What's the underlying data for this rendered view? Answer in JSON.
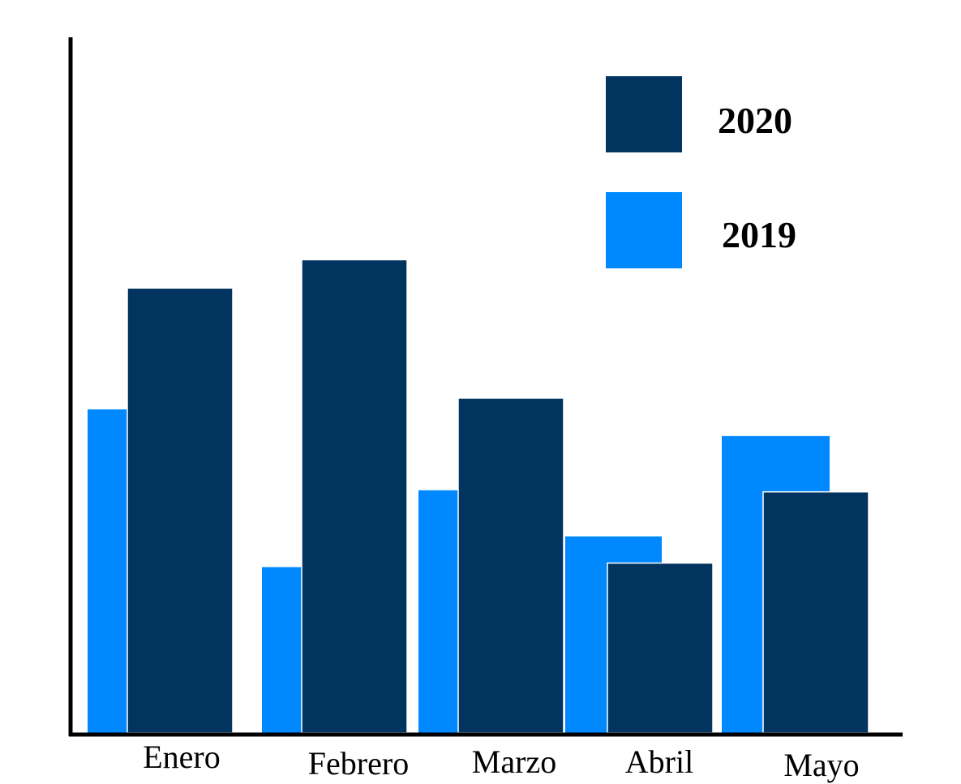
{
  "chart_data": {
    "type": "bar",
    "categories": [
      "Enero",
      "Febrero",
      "Marzo",
      "Abril",
      "Mayo"
    ],
    "series": [
      {
        "name": "2019",
        "values": [
          400,
          205,
          300,
          243,
          367
        ],
        "color": "#0088FF"
      },
      {
        "name": "2020",
        "values": [
          550,
          585,
          414,
          210,
          298
        ],
        "color": "#01345E"
      }
    ],
    "title": "",
    "xlabel": "",
    "ylabel": "",
    "ylim": [
      0,
      860
    ],
    "grid": false,
    "y_ticks_shown": false,
    "legend": {
      "placement": "top-right",
      "entries": [
        {
          "label": "2020",
          "color": "#01345E"
        },
        {
          "label": "2019",
          "color": "#0088FF"
        }
      ]
    },
    "axis_color": "#000000"
  }
}
